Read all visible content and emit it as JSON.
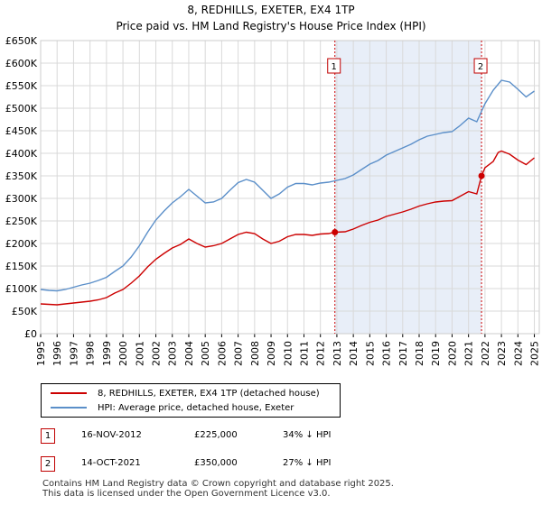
{
  "header": {
    "title": "8, REDHILLS, EXETER, EX4 1TP",
    "subtitle": "Price paid vs. HM Land Registry's House Price Index (HPI)"
  },
  "chart_data": {
    "type": "line",
    "x_range": [
      1995,
      2025.3
    ],
    "ylim": [
      0,
      650000
    ],
    "y_ticks": [
      0,
      50000,
      100000,
      150000,
      200000,
      250000,
      300000,
      350000,
      400000,
      450000,
      500000,
      550000,
      600000,
      650000
    ],
    "y_tick_labels": [
      "£0",
      "£50K",
      "£100K",
      "£150K",
      "£200K",
      "£250K",
      "£300K",
      "£350K",
      "£400K",
      "£450K",
      "£500K",
      "£550K",
      "£600K",
      "£650K"
    ],
    "x_tick_labels": [
      "1995",
      "1996",
      "1997",
      "1998",
      "1999",
      "2000",
      "2001",
      "2002",
      "2003",
      "2004",
      "2005",
      "2006",
      "2007",
      "2008",
      "2009",
      "2010",
      "2011",
      "2012",
      "2013",
      "2014",
      "2015",
      "2016",
      "2017",
      "2018",
      "2019",
      "2020",
      "2021",
      "2022",
      "2023",
      "2024",
      "2025"
    ],
    "grid": true,
    "series": [
      {
        "name": "8, REDHILLS, EXETER, EX4 1TP (detached house)",
        "color": "#cc0000",
        "x": [
          1995,
          1995.5,
          1996,
          1996.5,
          1997,
          1997.5,
          1998,
          1998.5,
          1999,
          1999.5,
          2000,
          2000.5,
          2001,
          2001.5,
          2002,
          2002.5,
          2003,
          2003.5,
          2004,
          2004.5,
          2005,
          2005.5,
          2006,
          2006.5,
          2007,
          2007.5,
          2008,
          2008.5,
          2009,
          2009.5,
          2010,
          2010.5,
          2011,
          2011.5,
          2012,
          2012.5,
          2012.88,
          2013.5,
          2014,
          2014.5,
          2015,
          2015.5,
          2016,
          2016.5,
          2017,
          2017.5,
          2018,
          2018.5,
          2019,
          2019.5,
          2020,
          2020.5,
          2021,
          2021.5,
          2021.79,
          2022,
          2022.5,
          2022.8,
          2023,
          2023.5,
          2024,
          2024.5,
          2025
        ],
        "y": [
          66000,
          65000,
          64000,
          66000,
          68000,
          70000,
          72000,
          75000,
          80000,
          90000,
          98000,
          112000,
          128000,
          148000,
          165000,
          178000,
          190000,
          198000,
          210000,
          200000,
          192000,
          195000,
          200000,
          210000,
          220000,
          225000,
          222000,
          210000,
          200000,
          205000,
          215000,
          220000,
          220000,
          218000,
          221000,
          222000,
          225000,
          226000,
          232000,
          240000,
          247000,
          252000,
          260000,
          265000,
          270000,
          276000,
          283000,
          288000,
          292000,
          294000,
          295000,
          305000,
          315000,
          310000,
          350000,
          368000,
          382000,
          402000,
          405000,
          398000,
          385000,
          375000,
          390000
        ]
      },
      {
        "name": "HPI: Average price, detached house, Exeter",
        "color": "#5b8fc9",
        "x": [
          1995,
          1995.5,
          1996,
          1996.5,
          1997,
          1997.5,
          1998,
          1998.5,
          1999,
          1999.5,
          2000,
          2000.5,
          2001,
          2001.5,
          2002,
          2002.5,
          2003,
          2003.5,
          2004,
          2004.5,
          2005,
          2005.5,
          2006,
          2006.5,
          2007,
          2007.5,
          2008,
          2008.5,
          2009,
          2009.5,
          2010,
          2010.5,
          2011,
          2011.5,
          2012,
          2012.5,
          2013,
          2013.5,
          2014,
          2014.5,
          2015,
          2015.5,
          2016,
          2016.5,
          2017,
          2017.5,
          2018,
          2018.5,
          2019,
          2019.5,
          2020,
          2020.5,
          2021,
          2021.5,
          2022,
          2022.5,
          2023,
          2023.5,
          2024,
          2024.5,
          2025
        ],
        "y": [
          98000,
          96000,
          95000,
          98000,
          103000,
          108000,
          112000,
          118000,
          125000,
          138000,
          150000,
          170000,
          195000,
          225000,
          252000,
          272000,
          290000,
          304000,
          320000,
          305000,
          290000,
          292000,
          300000,
          318000,
          335000,
          342000,
          336000,
          318000,
          300000,
          310000,
          325000,
          333000,
          333000,
          330000,
          334000,
          336000,
          340000,
          344000,
          352000,
          364000,
          376000,
          384000,
          396000,
          404000,
          412000,
          420000,
          430000,
          438000,
          442000,
          446000,
          448000,
          462000,
          478000,
          470000,
          510000,
          540000,
          562000,
          558000,
          542000,
          525000,
          538000
        ]
      }
    ],
    "sale_markers": [
      {
        "id": "1",
        "x": 2012.88,
        "y": 225000
      },
      {
        "id": "2",
        "x": 2021.79,
        "y": 350000
      }
    ],
    "shaded_range": [
      2012.88,
      2021.79
    ]
  },
  "legend": {
    "property": "8, REDHILLS, EXETER, EX4 1TP (detached house)",
    "hpi": "HPI: Average price, detached house, Exeter"
  },
  "transactions": [
    {
      "id": "1",
      "date": "16-NOV-2012",
      "price": "£225,000",
      "delta": "34% ↓ HPI"
    },
    {
      "id": "2",
      "date": "14-OCT-2021",
      "price": "£350,000",
      "delta": "27% ↓ HPI"
    }
  ],
  "footer": {
    "line1": "Contains HM Land Registry data © Crown copyright and database right 2025.",
    "line2": "This data is licensed under the Open Government Licence v3.0."
  },
  "colors": {
    "property": "#cc0000",
    "hpi": "#5b8fc9",
    "shade": "#e8eef8",
    "marker_border": "#c00000"
  }
}
